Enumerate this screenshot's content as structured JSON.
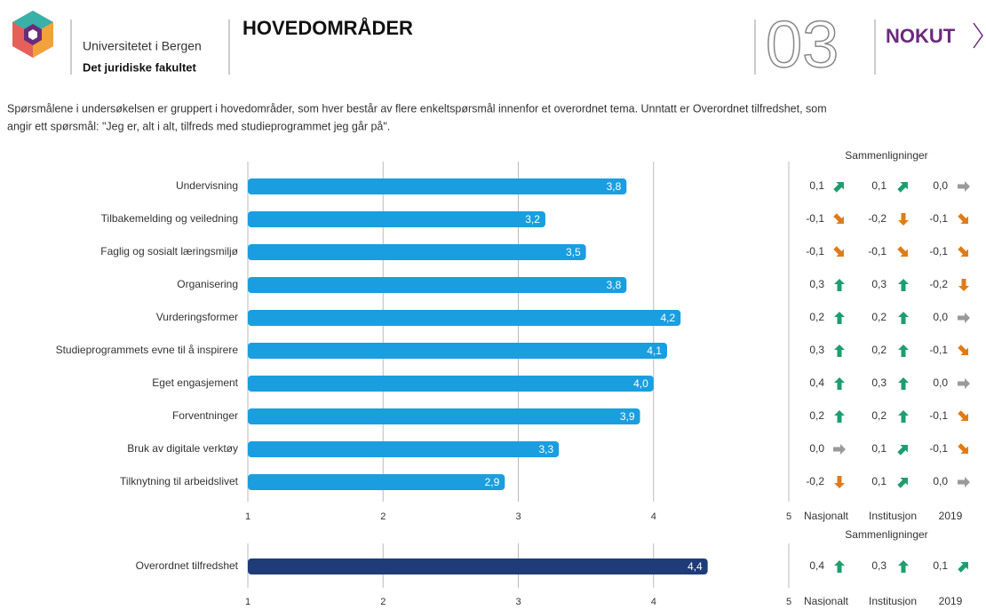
{
  "header": {
    "institution": "Universitetet i Bergen",
    "faculty": "Det juridiske fakultet",
    "title": "HOVEDOMRÅDER",
    "page_number": "03",
    "brand": "NOKUT"
  },
  "intro": [
    "Spørsmålene i undersøkelsen er gruppert i hovedområder, som hver består av flere enkeltspørsmål innenfor et overordnet tema. Unntatt er Overordnet tilfredshet, som",
    "angir ett spørsmål: \"Jeg er, alt i alt, tilfreds med studieprogrammet jeg går på\"."
  ],
  "chart_data": [
    {
      "type": "bar",
      "orientation": "horizontal",
      "color": "#1a9ee0",
      "grid": true,
      "categories": [
        "Undervisning",
        "Tilbakemelding og veiledning",
        "Faglig og sosialt læringsmiljø",
        "Organisering",
        "Vurderingsformer",
        "Studieprogrammets evne til å inspirere",
        "Eget engasjement",
        "Forventninger",
        "Bruk av digitale verktøy",
        "Tilknytning til arbeidslivet"
      ],
      "values": [
        3.8,
        3.2,
        3.5,
        3.8,
        4.2,
        4.1,
        4.0,
        3.9,
        3.3,
        2.9
      ],
      "value_labels": [
        "3,8",
        "3,2",
        "3,5",
        "3,8",
        "4,2",
        "4,1",
        "4,0",
        "3,9",
        "3,3",
        "2,9"
      ],
      "xlim": [
        1,
        5
      ],
      "xticks": [
        1,
        2,
        3,
        4,
        5
      ],
      "comparisons": {
        "title": "Sammenligninger",
        "columns": [
          "Nasjonalt",
          "Institusjon",
          "2019"
        ],
        "values": [
          [
            0.1,
            0.1,
            0.0
          ],
          [
            -0.1,
            -0.2,
            -0.1
          ],
          [
            -0.1,
            -0.1,
            -0.1
          ],
          [
            0.3,
            0.3,
            -0.2
          ],
          [
            0.2,
            0.2,
            0.0
          ],
          [
            0.3,
            0.2,
            -0.1
          ],
          [
            0.4,
            0.3,
            0.0
          ],
          [
            0.2,
            0.2,
            -0.1
          ],
          [
            0.0,
            0.1,
            -0.1
          ],
          [
            -0.2,
            0.1,
            0.0
          ]
        ],
        "value_labels": [
          [
            "0,1",
            "0,1",
            "0,0"
          ],
          [
            "-0,1",
            "-0,2",
            "-0,1"
          ],
          [
            "-0,1",
            "-0,1",
            "-0,1"
          ],
          [
            "0,3",
            "0,3",
            "-0,2"
          ],
          [
            "0,2",
            "0,2",
            "0,0"
          ],
          [
            "0,3",
            "0,2",
            "-0,1"
          ],
          [
            "0,4",
            "0,3",
            "0,0"
          ],
          [
            "0,2",
            "0,2",
            "-0,1"
          ],
          [
            "0,0",
            "0,1",
            "-0,1"
          ],
          [
            "-0,2",
            "0,1",
            "0,0"
          ]
        ]
      }
    },
    {
      "type": "bar",
      "orientation": "horizontal",
      "color": "#1f3c78",
      "grid": true,
      "categories": [
        "Overordnet tilfredshet"
      ],
      "values": [
        4.4
      ],
      "value_labels": [
        "4,4"
      ],
      "xlim": [
        1,
        5
      ],
      "xticks": [
        1,
        2,
        3,
        4,
        5
      ],
      "comparisons": {
        "title": "Sammenligninger",
        "columns": [
          "Nasjonalt",
          "Institusjon",
          "2019"
        ],
        "values": [
          [
            0.4,
            0.3,
            0.1
          ]
        ],
        "value_labels": [
          [
            "0,4",
            "0,3",
            "0,1"
          ]
        ]
      }
    }
  ]
}
